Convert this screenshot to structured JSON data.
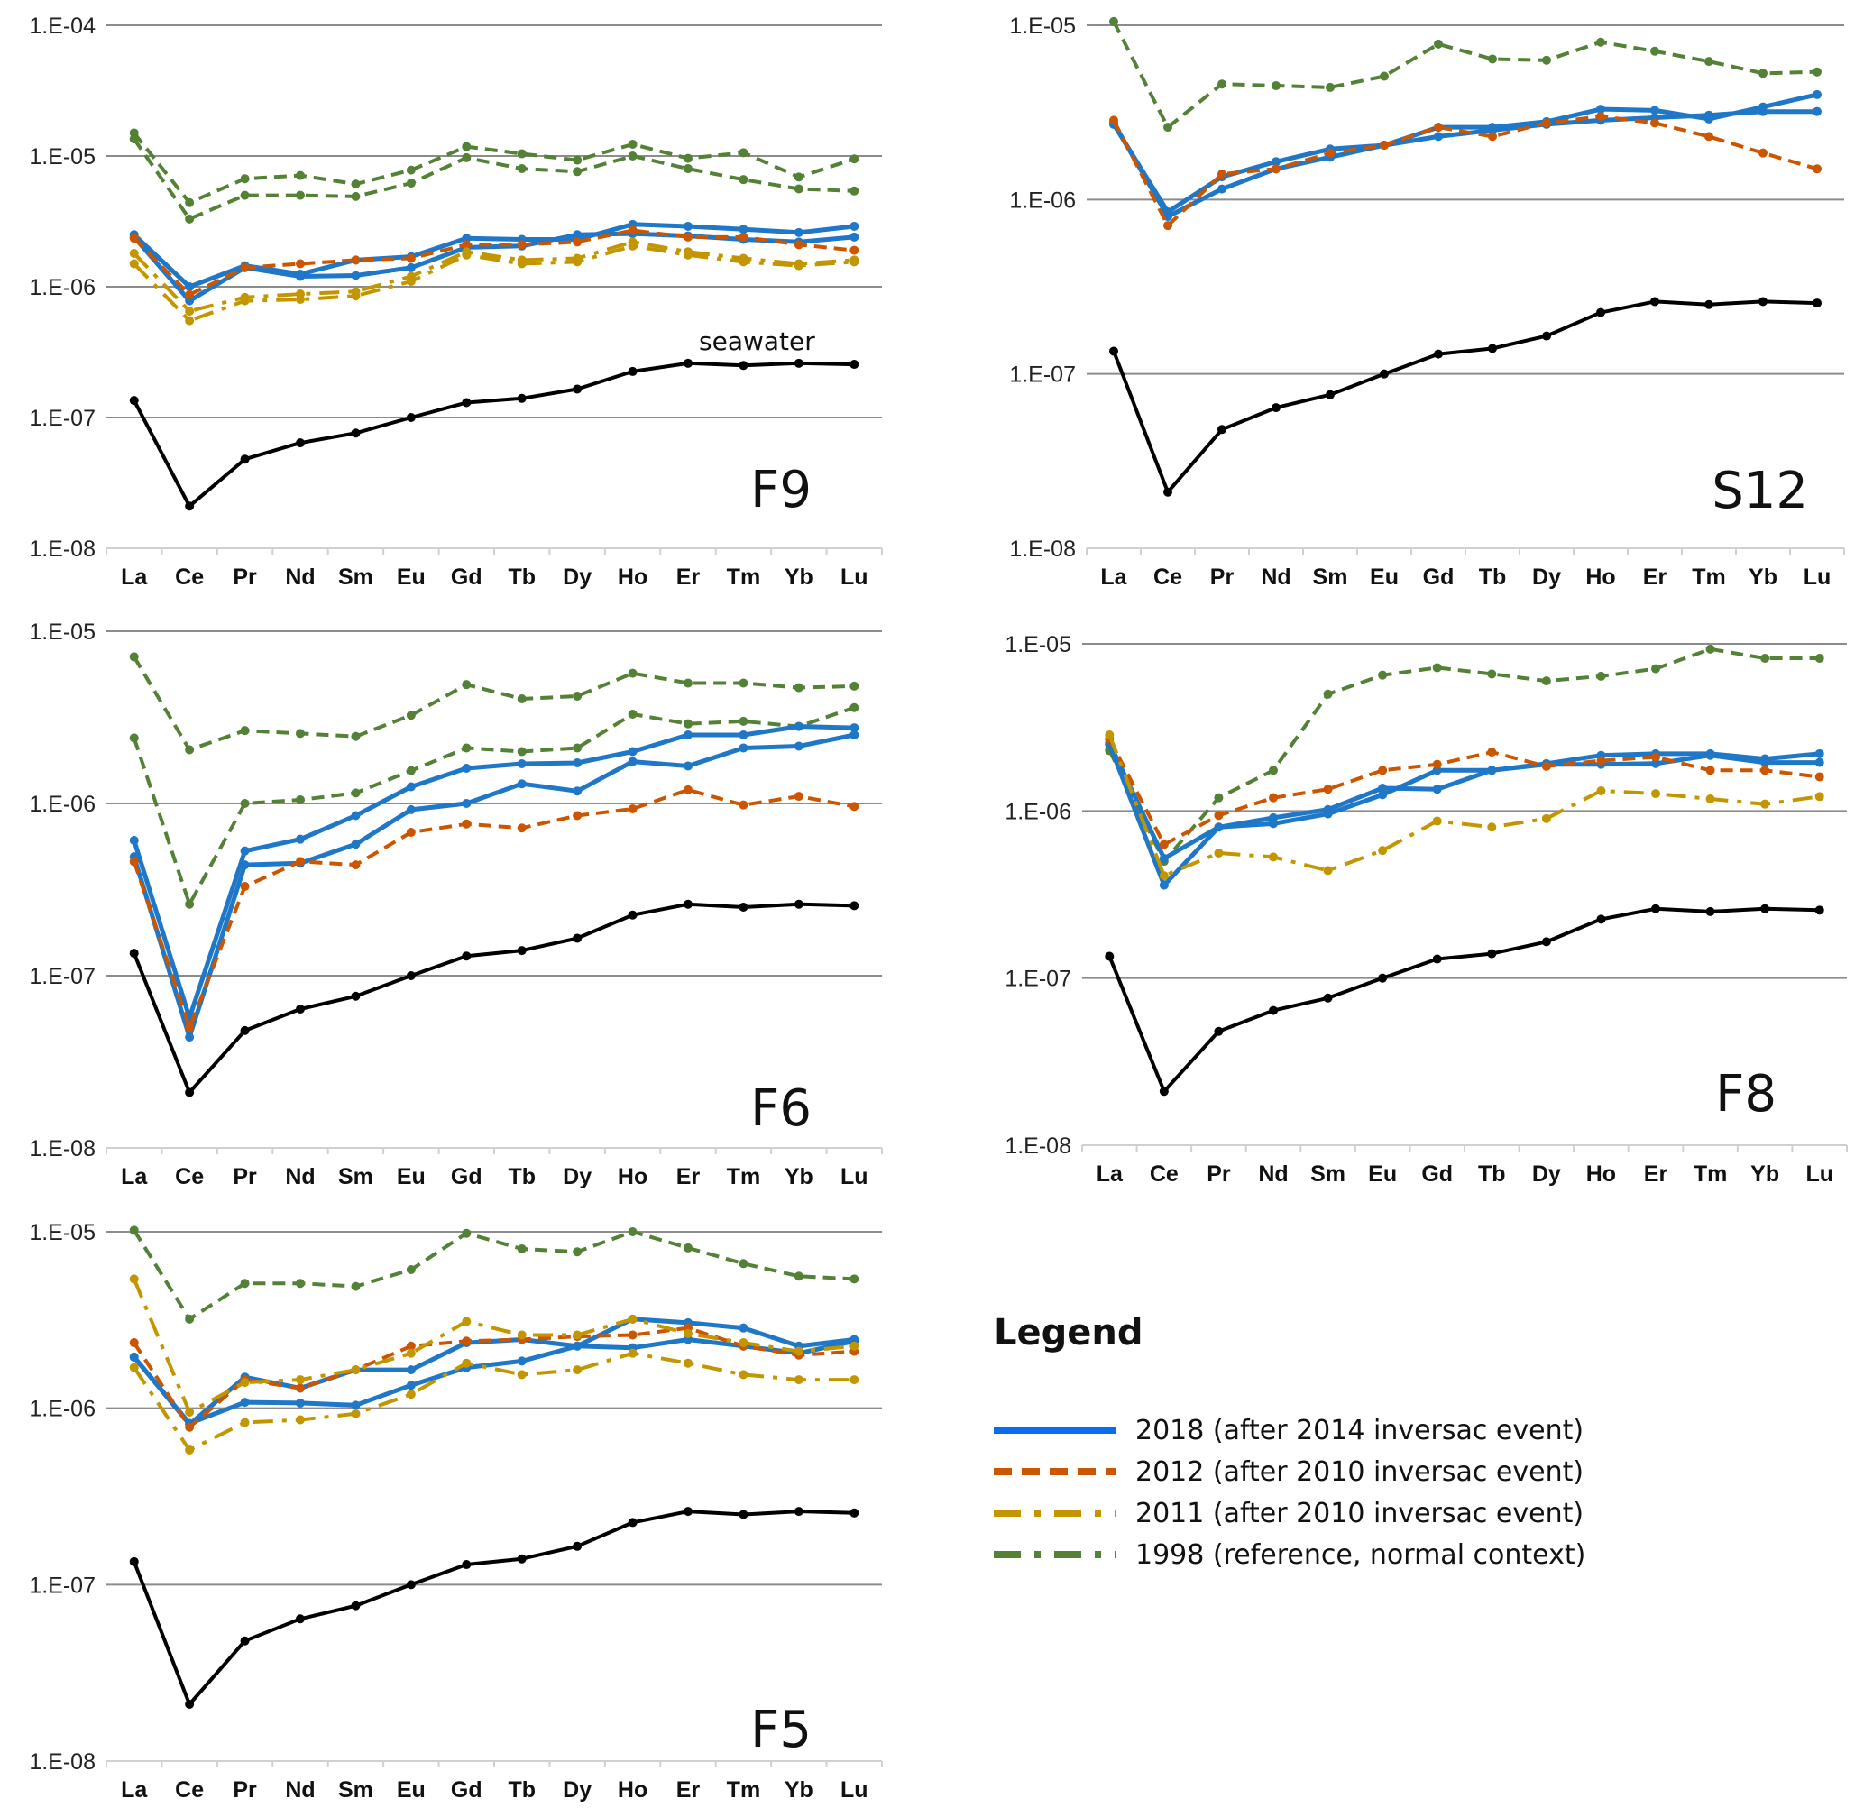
{
  "chart_data": {
    "type": "line",
    "yscale": "log",
    "categories": [
      "La",
      "Ce",
      "Pr",
      "Nd",
      "Sm",
      "Eu",
      "Gd",
      "Tb",
      "Dy",
      "Ho",
      "Er",
      "Tm",
      "Yb",
      "Lu"
    ],
    "series_styles": {
      "2018": {
        "color": "#1f77c8",
        "dash": "solid",
        "legend_color": "#0a6cf0"
      },
      "2012": {
        "color": "#cc5500",
        "dash": "dashed"
      },
      "2011": {
        "color": "#c39600",
        "dash": "dash-dot"
      },
      "1998": {
        "color": "#538135",
        "dash": "dashed",
        "legend_dash": "dash-dot"
      },
      "seawater": {
        "color": "#000000",
        "dash": "solid"
      }
    },
    "legend": {
      "title": "Legend",
      "placement": "bottom-right",
      "entries": [
        {
          "key": "2018",
          "label": "2018 (after 2014 inversac event)"
        },
        {
          "key": "2012",
          "label": "2012 (after 2010 inversac event)"
        },
        {
          "key": "2011",
          "label": "2011 (after 2010 inversac event)"
        },
        {
          "key": "1998",
          "label": "1998 (reference, normal context)"
        }
      ]
    },
    "seawater": [
      1.35e-07,
      2.1e-08,
      4.8e-08,
      6.4e-08,
      7.6e-08,
      1e-07,
      1.3e-07,
      1.4e-07,
      1.65e-07,
      2.25e-07,
      2.6e-07,
      2.5e-07,
      2.6e-07,
      2.55e-07
    ],
    "panels": [
      {
        "id": "F9",
        "label": "F9",
        "annotation": "seawater",
        "ylim": [
          1e-08,
          0.0001
        ],
        "yticks": [
          "1.E-08",
          "1.E-07",
          "1.E-06",
          "1.E-05",
          "1.E-04"
        ],
        "series": [
          {
            "key": "1998",
            "name": "1998 (a)",
            "values": [
              1.5e-05,
              4.4e-06,
              6.7e-06,
              7.1e-06,
              6.1e-06,
              7.8e-06,
              1.18e-05,
              1.04e-05,
              9.3e-06,
              1.23e-05,
              9.6e-06,
              1.06e-05,
              6.9e-06,
              9.5e-06
            ]
          },
          {
            "key": "1998",
            "name": "1998 (b)",
            "values": [
              1.35e-05,
              3.3e-06,
              5e-06,
              5e-06,
              4.9e-06,
              6.2e-06,
              9.7e-06,
              8e-06,
              7.6e-06,
              1e-05,
              8e-06,
              6.6e-06,
              5.6e-06,
              5.4e-06
            ]
          },
          {
            "key": "2018",
            "name": "2018 (a)",
            "values": [
              2.5e-06,
              1e-06,
              1.45e-06,
              1.25e-06,
              1.6e-06,
              1.7e-06,
              2.35e-06,
              2.3e-06,
              2.3e-06,
              3e-06,
              2.9e-06,
              2.75e-06,
              2.6e-06,
              2.9e-06
            ]
          },
          {
            "key": "2018",
            "name": "2018 (b)",
            "values": [
              2.4e-06,
              7.8e-07,
              1.4e-06,
              1.2e-06,
              1.22e-06,
              1.4e-06,
              2e-06,
              2.05e-06,
              2.5e-06,
              2.55e-06,
              2.45e-06,
              2.3e-06,
              2.2e-06,
              2.4e-06
            ]
          },
          {
            "key": "2012",
            "name": "2012",
            "values": [
              2.35e-06,
              8.7e-07,
              1.4e-06,
              1.5e-06,
              1.6e-06,
              1.65e-06,
              2.1e-06,
              2.1e-06,
              2.2e-06,
              2.7e-06,
              2.4e-06,
              2.4e-06,
              2.1e-06,
              1.9e-06
            ]
          },
          {
            "key": "2011",
            "name": "2011 (a)",
            "values": [
              1.8e-06,
              6.5e-07,
              8.3e-07,
              8.8e-07,
              9.2e-07,
              1.2e-06,
              1.85e-06,
              1.6e-06,
              1.65e-06,
              2.2e-06,
              1.85e-06,
              1.65e-06,
              1.5e-06,
              1.6e-06
            ]
          },
          {
            "key": "2011",
            "name": "2011 (b)",
            "values": [
              1.5e-06,
              5.5e-07,
              7.8e-07,
              8e-07,
              8.5e-07,
              1.1e-06,
              1.75e-06,
              1.5e-06,
              1.55e-06,
              2.05e-06,
              1.75e-06,
              1.55e-06,
              1.45e-06,
              1.55e-06
            ]
          }
        ]
      },
      {
        "id": "S12",
        "label": "S12",
        "ylim": [
          1e-08,
          1e-05
        ],
        "yticks": [
          "1.E-08",
          "1.E-07",
          "1.E-06",
          "1.E-05"
        ],
        "series": [
          {
            "key": "1998",
            "name": "1998",
            "values": [
              1.05e-05,
              2.6e-06,
              4.6e-06,
              4.5e-06,
              4.4e-06,
              5.1e-06,
              7.8e-06,
              6.4e-06,
              6.3e-06,
              8e-06,
              7.1e-06,
              6.2e-06,
              5.3e-06,
              5.4e-06
            ]
          },
          {
            "key": "2018",
            "name": "2018 (a)",
            "values": [
              2.7e-06,
              8.5e-07,
              1.35e-06,
              1.65e-06,
              1.95e-06,
              2.05e-06,
              2.6e-06,
              2.6e-06,
              2.8e-06,
              3.3e-06,
              3.25e-06,
              2.9e-06,
              3.4e-06,
              4e-06
            ]
          },
          {
            "key": "2018",
            "name": "2018 (b)",
            "values": [
              2.75e-06,
              8e-07,
              1.15e-06,
              1.5e-06,
              1.75e-06,
              2.05e-06,
              2.3e-06,
              2.5e-06,
              2.7e-06,
              2.85e-06,
              2.95e-06,
              3.05e-06,
              3.2e-06,
              3.2e-06
            ]
          },
          {
            "key": "2012",
            "name": "2012",
            "values": [
              2.85e-06,
              7.1e-07,
              1.4e-06,
              1.5e-06,
              1.85e-06,
              2.05e-06,
              2.6e-06,
              2.3e-06,
              2.75e-06,
              3e-06,
              2.75e-06,
              2.3e-06,
              1.85e-06,
              1.5e-06
            ]
          }
        ]
      },
      {
        "id": "F6",
        "label": "F6",
        "ylim": [
          1e-08,
          1e-05
        ],
        "yticks": [
          "1.E-08",
          "1.E-07",
          "1.E-06",
          "1.E-05"
        ],
        "series": [
          {
            "key": "1998",
            "name": "1998 (a)",
            "values": [
              7.1e-06,
              2.05e-06,
              2.65e-06,
              2.55e-06,
              2.45e-06,
              3.25e-06,
              4.9e-06,
              4.05e-06,
              4.2e-06,
              5.7e-06,
              5e-06,
              5e-06,
              4.7e-06,
              4.8e-06
            ]
          },
          {
            "key": "1998",
            "name": "1998 (b)",
            "values": [
              2.4e-06,
              2.6e-07,
              1e-06,
              1.05e-06,
              1.15e-06,
              1.55e-06,
              2.1e-06,
              2e-06,
              2.1e-06,
              3.3e-06,
              2.9e-06,
              3e-06,
              2.8e-06,
              3.6e-06
            ]
          },
          {
            "key": "2018",
            "name": "2018 (a)",
            "values": [
              6.1e-07,
              5.7e-08,
              5.3e-07,
              6.2e-07,
              8.5e-07,
              1.25e-06,
              1.6e-06,
              1.7e-06,
              1.72e-06,
              2e-06,
              2.5e-06,
              2.5e-06,
              2.8e-06,
              2.75e-06
            ]
          },
          {
            "key": "2018",
            "name": "2018 (b)",
            "values": [
              4.9e-07,
              4.4e-08,
              4.4e-07,
              4.5e-07,
              5.8e-07,
              9.2e-07,
              1e-06,
              1.3e-06,
              1.18e-06,
              1.75e-06,
              1.65e-06,
              2.1e-06,
              2.15e-06,
              2.5e-06
            ]
          },
          {
            "key": "2012",
            "name": "2012",
            "values": [
              4.6e-07,
              5e-08,
              3.3e-07,
              4.6e-07,
              4.4e-07,
              6.8e-07,
              7.6e-07,
              7.2e-07,
              8.5e-07,
              9.3e-07,
              1.2e-06,
              9.8e-07,
              1.1e-06,
              9.6e-07
            ]
          }
        ]
      },
      {
        "id": "F8",
        "label": "F8",
        "ylim": [
          1e-08,
          1e-05
        ],
        "yticks": [
          "1.E-08",
          "1.E-07",
          "1.E-06",
          "1.E-05"
        ],
        "series": [
          {
            "key": "1998",
            "name": "1998",
            "values": [
              2.3e-06,
              5e-07,
              1.2e-06,
              1.75e-06,
              5e-06,
              6.5e-06,
              7.2e-06,
              6.6e-06,
              6e-06,
              6.4e-06,
              7.1e-06,
              9.3e-06,
              8.2e-06,
              8.2e-06
            ]
          },
          {
            "key": "2018",
            "name": "2018 (a)",
            "values": [
              2.55e-06,
              5.2e-07,
              8e-07,
              9.1e-07,
              1.02e-06,
              1.37e-06,
              1.35e-06,
              1.75e-06,
              1.92e-06,
              2.15e-06,
              2.2e-06,
              2.2e-06,
              2.05e-06,
              2.2e-06
            ]
          },
          {
            "key": "2018",
            "name": "2018 (b)",
            "values": [
              2.5e-06,
              3.6e-07,
              8e-07,
              8.4e-07,
              9.6e-07,
              1.25e-06,
              1.75e-06,
              1.75e-06,
              1.9e-06,
              1.9e-06,
              1.92e-06,
              2.15e-06,
              1.95e-06,
              1.95e-06
            ]
          },
          {
            "key": "2012",
            "name": "2012",
            "values": [
              2.7e-06,
              6.3e-07,
              9.4e-07,
              1.2e-06,
              1.35e-06,
              1.75e-06,
              1.9e-06,
              2.25e-06,
              1.85e-06,
              2e-06,
              2.1e-06,
              1.75e-06,
              1.75e-06,
              1.6e-06
            ]
          },
          {
            "key": "2011",
            "name": "2011",
            "values": [
              2.85e-06,
              4.1e-07,
              5.6e-07,
              5.3e-07,
              4.4e-07,
              5.8e-07,
              8.7e-07,
              8e-07,
              9e-07,
              1.32e-06,
              1.27e-06,
              1.18e-06,
              1.1e-06,
              1.22e-06
            ]
          }
        ]
      },
      {
        "id": "F5",
        "label": "F5",
        "ylim": [
          1e-08,
          1e-05
        ],
        "yticks": [
          "1.E-08",
          "1.E-07",
          "1.E-06",
          "1.E-05"
        ],
        "series": [
          {
            "key": "1998",
            "name": "1998",
            "values": [
              1.02e-05,
              3.2e-06,
              5.1e-06,
              5.1e-06,
              4.9e-06,
              6.1e-06,
              9.8e-06,
              8e-06,
              7.7e-06,
              1e-05,
              8.1e-06,
              6.6e-06,
              5.6e-06,
              5.4e-06
            ]
          },
          {
            "key": "2018",
            "name": "2018 (a)",
            "values": [
              1.95e-06,
              8.1e-07,
              1.5e-06,
              1.3e-06,
              1.65e-06,
              1.65e-06,
              2.35e-06,
              2.45e-06,
              2.25e-06,
              3.2e-06,
              3.05e-06,
              2.85e-06,
              2.25e-06,
              2.45e-06
            ]
          },
          {
            "key": "2018",
            "name": "2018 (b)",
            "values": [
              1.95e-06,
              8.2e-07,
              1.08e-06,
              1.07e-06,
              1.04e-06,
              1.35e-06,
              1.7e-06,
              1.85e-06,
              2.25e-06,
              2.2e-06,
              2.45e-06,
              2.25e-06,
              2.05e-06,
              2.4e-06
            ]
          },
          {
            "key": "2012",
            "name": "2012",
            "values": [
              2.35e-06,
              7.8e-07,
              1.45e-06,
              1.3e-06,
              1.65e-06,
              2.25e-06,
              2.4e-06,
              2.45e-06,
              2.55e-06,
              2.6e-06,
              2.85e-06,
              2.25e-06,
              2e-06,
              2.1e-06
            ]
          },
          {
            "key": "2011",
            "name": "2011 (a)",
            "values": [
              5.4e-06,
              9.5e-07,
              1.4e-06,
              1.45e-06,
              1.65e-06,
              2.05e-06,
              3.1e-06,
              2.6e-06,
              2.6e-06,
              3.2e-06,
              2.65e-06,
              2.35e-06,
              2.1e-06,
              2.25e-06
            ]
          },
          {
            "key": "2011",
            "name": "2011 (b)",
            "values": [
              1.7e-06,
              5.8e-07,
              8.3e-07,
              8.6e-07,
              9.3e-07,
              1.2e-06,
              1.8e-06,
              1.55e-06,
              1.65e-06,
              2.05e-06,
              1.8e-06,
              1.55e-06,
              1.45e-06,
              1.45e-06
            ]
          }
        ]
      }
    ]
  }
}
